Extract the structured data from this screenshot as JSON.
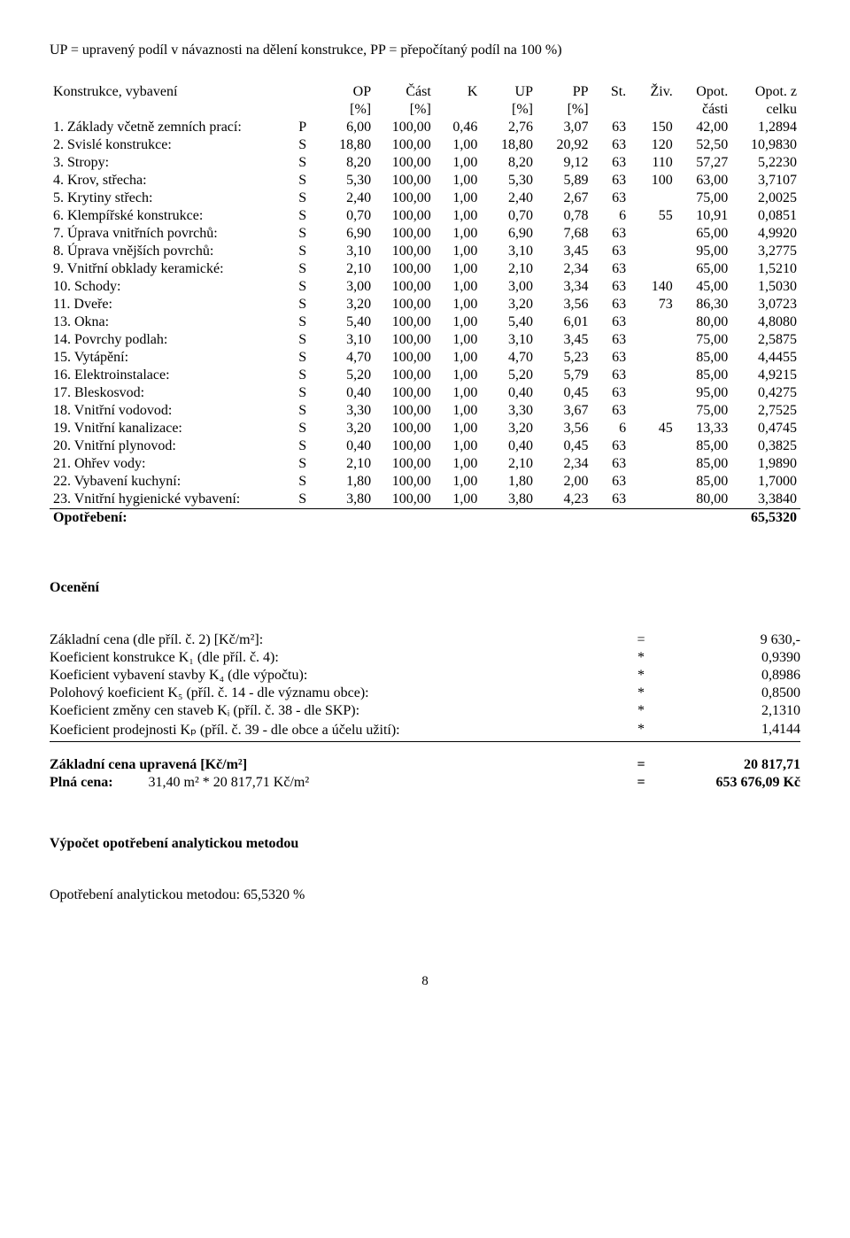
{
  "top_note": "UP = upravený podíl v návaznosti na dělení konstrukce, PP = přepočítaný podíl na 100 %)",
  "header_label": "Konstrukce, vybavení",
  "cols": [
    "OP",
    "Část",
    "K",
    "UP",
    "PP",
    "St.",
    "Živ.",
    "Opot.",
    "Opot. z"
  ],
  "unit_row": [
    "[%]",
    "[%]",
    "",
    "[%]",
    "[%]",
    "",
    "",
    "části",
    "celku"
  ],
  "rows": [
    {
      "label": "1. Základy včetně zemních prací:",
      "sp": "P",
      "v": [
        "6,00",
        "100,00",
        "0,46",
        "2,76",
        "3,07",
        "63",
        "150",
        "42,00",
        "1,2894"
      ]
    },
    {
      "label": "2. Svislé konstrukce:",
      "sp": "S",
      "v": [
        "18,80",
        "100,00",
        "1,00",
        "18,80",
        "20,92",
        "63",
        "120",
        "52,50",
        "10,9830"
      ]
    },
    {
      "label": "3. Stropy:",
      "sp": "S",
      "v": [
        "8,20",
        "100,00",
        "1,00",
        "8,20",
        "9,12",
        "63",
        "110",
        "57,27",
        "5,2230"
      ]
    },
    {
      "label": "4. Krov, střecha:",
      "sp": "S",
      "v": [
        "5,30",
        "100,00",
        "1,00",
        "5,30",
        "5,89",
        "63",
        "100",
        "63,00",
        "3,7107"
      ]
    },
    {
      "label": "5. Krytiny střech:",
      "sp": "S",
      "v": [
        "2,40",
        "100,00",
        "1,00",
        "2,40",
        "2,67",
        "63",
        "",
        "75,00",
        "2,0025"
      ]
    },
    {
      "label": "6. Klempířské konstrukce:",
      "sp": "S",
      "v": [
        "0,70",
        "100,00",
        "1,00",
        "0,70",
        "0,78",
        "6",
        "55",
        "10,91",
        "0,0851"
      ]
    },
    {
      "label": "7. Úprava vnitřních povrchů:",
      "sp": "S",
      "v": [
        "6,90",
        "100,00",
        "1,00",
        "6,90",
        "7,68",
        "63",
        "",
        "65,00",
        "4,9920"
      ]
    },
    {
      "label": "8. Úprava vnějších povrchů:",
      "sp": "S",
      "v": [
        "3,10",
        "100,00",
        "1,00",
        "3,10",
        "3,45",
        "63",
        "",
        "95,00",
        "3,2775"
      ]
    },
    {
      "label": "9. Vnitřní obklady keramické:",
      "sp": "S",
      "v": [
        "2,10",
        "100,00",
        "1,00",
        "2,10",
        "2,34",
        "63",
        "",
        "65,00",
        "1,5210"
      ]
    },
    {
      "label": "10. Schody:",
      "sp": "S",
      "v": [
        "3,00",
        "100,00",
        "1,00",
        "3,00",
        "3,34",
        "63",
        "140",
        "45,00",
        "1,5030"
      ]
    },
    {
      "label": "11. Dveře:",
      "sp": "S",
      "v": [
        "3,20",
        "100,00",
        "1,00",
        "3,20",
        "3,56",
        "63",
        "73",
        "86,30",
        "3,0723"
      ]
    },
    {
      "label": "13. Okna:",
      "sp": "S",
      "v": [
        "5,40",
        "100,00",
        "1,00",
        "5,40",
        "6,01",
        "63",
        "",
        "80,00",
        "4,8080"
      ]
    },
    {
      "label": "14. Povrchy podlah:",
      "sp": "S",
      "v": [
        "3,10",
        "100,00",
        "1,00",
        "3,10",
        "3,45",
        "63",
        "",
        "75,00",
        "2,5875"
      ]
    },
    {
      "label": "15. Vytápění:",
      "sp": "S",
      "v": [
        "4,70",
        "100,00",
        "1,00",
        "4,70",
        "5,23",
        "63",
        "",
        "85,00",
        "4,4455"
      ]
    },
    {
      "label": "16. Elektroinstalace:",
      "sp": "S",
      "v": [
        "5,20",
        "100,00",
        "1,00",
        "5,20",
        "5,79",
        "63",
        "",
        "85,00",
        "4,9215"
      ]
    },
    {
      "label": "17. Bleskosvod:",
      "sp": "S",
      "v": [
        "0,40",
        "100,00",
        "1,00",
        "0,40",
        "0,45",
        "63",
        "",
        "95,00",
        "0,4275"
      ]
    },
    {
      "label": "18. Vnitřní vodovod:",
      "sp": "S",
      "v": [
        "3,30",
        "100,00",
        "1,00",
        "3,30",
        "3,67",
        "63",
        "",
        "75,00",
        "2,7525"
      ]
    },
    {
      "label": "19. Vnitřní kanalizace:",
      "sp": "S",
      "v": [
        "3,20",
        "100,00",
        "1,00",
        "3,20",
        "3,56",
        "6",
        "45",
        "13,33",
        "0,4745"
      ]
    },
    {
      "label": "20. Vnitřní plynovod:",
      "sp": "S",
      "v": [
        "0,40",
        "100,00",
        "1,00",
        "0,40",
        "0,45",
        "63",
        "",
        "85,00",
        "0,3825"
      ]
    },
    {
      "label": "21. Ohřev vody:",
      "sp": "S",
      "v": [
        "2,10",
        "100,00",
        "1,00",
        "2,10",
        "2,34",
        "63",
        "",
        "85,00",
        "1,9890"
      ]
    },
    {
      "label": "22. Vybavení kuchyní:",
      "sp": "S",
      "v": [
        "1,80",
        "100,00",
        "1,00",
        "1,80",
        "2,00",
        "63",
        "",
        "85,00",
        "1,7000"
      ]
    },
    {
      "label": "23. Vnitřní hygienické vybavení:",
      "sp": "S",
      "v": [
        "3,80",
        "100,00",
        "1,00",
        "3,80",
        "4,23",
        "63",
        "",
        "80,00",
        "3,3840"
      ]
    }
  ],
  "sum_label": "Opotřebení:",
  "sum_value": "65,5320",
  "ocen_title": "Ocenění",
  "calc_rows": [
    {
      "label": "Základní cena (dle příl. č. 2) [Kč/m²]:",
      "eq": "=",
      "val": "9 630,-"
    },
    {
      "label": "Koeficient konstrukce K₁ (dle příl. č. 4):",
      "eq": "*",
      "val": "0,9390"
    },
    {
      "label": "Koeficient vybavení stavby K₄ (dle výpočtu):",
      "eq": "*",
      "val": "0,8986"
    },
    {
      "label": "Polohový koeficient K₅ (příl. č. 14 - dle významu obce):",
      "eq": "*",
      "val": "0,8500"
    },
    {
      "label": "Koeficient změny cen staveb Kᵢ (příl. č. 38 - dle SKP):",
      "eq": "*",
      "val": "2,1310"
    },
    {
      "label": "Koeficient prodejnosti Kₚ (příl. č. 39 - dle obce a účelu užití):",
      "eq": "*",
      "val": "1,4144"
    }
  ],
  "result1": {
    "label": "Základní cena upravená    [Kč/m²]",
    "eq": "=",
    "val": "20 817,71"
  },
  "result2": {
    "label": "Plná cena:",
    "expr": "31,40 m² * 20 817,71 Kč/m²",
    "eq": "=",
    "val": "653 676,09 Kč"
  },
  "method_title": "Výpočet opotřebení analytickou metodou",
  "method_line": "Opotřebení analytickou metodou: 65,5320 %",
  "page_num": "8"
}
